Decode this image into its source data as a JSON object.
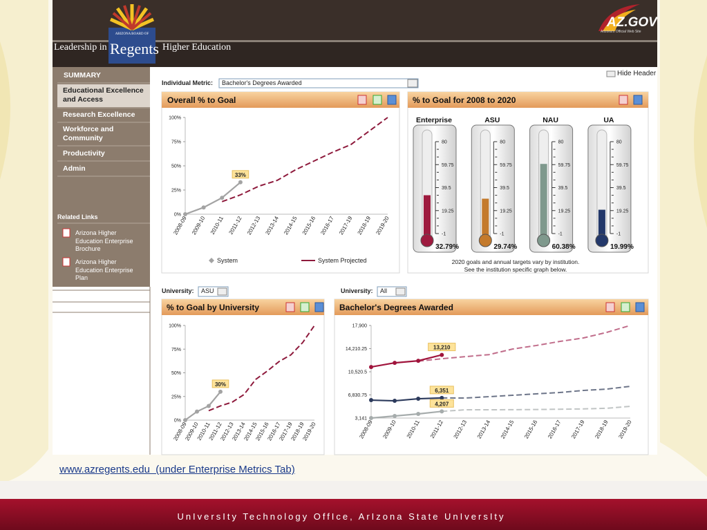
{
  "header": {
    "lead": "Leadership in",
    "logo_small": "ARIZONA BOARD OF",
    "logo": "Regents",
    "tail": "Higher Education",
    "azgov": "AZ.GOV",
    "azgov_tagline": "Arizona's Official Web Site"
  },
  "sidebar": {
    "menu": [
      "SUMMARY",
      "Educational Excellence and Access",
      "Research Excellence",
      "Workforce and Community",
      "Productivity",
      "Admin"
    ],
    "related_title": "Related Links",
    "links": [
      "Arizona Higher Education Enterprise Brochure",
      "Arizona Higher Education Enterprise Plan"
    ]
  },
  "toolbar": {
    "hide_header": "Hide Header",
    "metric_label": "Individual Metric:",
    "metric_value": "Bachelor's Degrees Awarded"
  },
  "charts": [
    {
      "type": "line",
      "title": "Overall % to Goal",
      "categories": [
        "2008-09",
        "2009-10",
        "2010-11",
        "2011-12",
        "2012-13",
        "2013-14",
        "2014-15",
        "2015-16",
        "2016-17",
        "2017-19",
        "2018-19",
        "2019-20"
      ],
      "ylim": [
        0,
        100
      ],
      "yticks": [
        {
          "value": 0,
          "label": "0%"
        },
        {
          "value": 25,
          "label": "25%"
        },
        {
          "value": 50,
          "label": "50%"
        },
        {
          "value": 75,
          "label": "75%"
        },
        {
          "value": 100,
          "label": "100%"
        }
      ],
      "legend": "bottom",
      "series": [
        {
          "name": "System",
          "color": "#a3a3a3",
          "markers": true,
          "values": [
            0,
            7,
            17,
            33,
            null,
            null,
            null,
            null,
            null,
            null,
            null,
            null
          ],
          "value_labels": [
            null,
            null,
            null,
            "33%",
            null,
            null,
            null,
            null,
            null,
            null,
            null,
            null
          ]
        },
        {
          "name": "System Projected",
          "color": "#8e1a3c",
          "dashed": true,
          "values": [
            null,
            null,
            13,
            20,
            29,
            35,
            46,
            55,
            64,
            72,
            86,
            100
          ]
        }
      ]
    },
    {
      "type": "thermometer",
      "title": "% to Goal for 2008 to 2020",
      "categories": [
        "Enterprise",
        "ASU",
        "NAU",
        "UA"
      ],
      "values": [
        32.79,
        29.74,
        60.38,
        19.99
      ],
      "value_labels": [
        "32.79%",
        "29.74%",
        "60.38%",
        "19.99%"
      ],
      "colors": [
        "#9e1b3f",
        "#c47a2c",
        "#7f998d",
        "#23386a"
      ],
      "ylim": [
        -1,
        80
      ],
      "yticks": [
        -1,
        19.25,
        39.5,
        59.75,
        80
      ],
      "note": [
        "2020 goals and annual targets vary by institution.",
        "See the institution specific graph below."
      ]
    },
    {
      "type": "line",
      "title": "% to Goal by University",
      "filter_label": "University:",
      "filter_value": "ASU",
      "categories": [
        "2008-09",
        "2009-10",
        "2010-11",
        "2011-12",
        "2012-13",
        "2013-14",
        "2014-15",
        "2015-16",
        "2016-17",
        "2017-19",
        "2018-19",
        "2019-20"
      ],
      "ylim": [
        0,
        100
      ],
      "yticks": [
        {
          "value": 0,
          "label": "0%"
        },
        {
          "value": 25,
          "label": "25%"
        },
        {
          "value": 50,
          "label": "50%"
        },
        {
          "value": 75,
          "label": "75%"
        },
        {
          "value": 100,
          "label": "100%"
        }
      ],
      "series": [
        {
          "color": "#a3a3a3",
          "markers": true,
          "values": [
            0,
            9,
            15,
            30,
            null,
            null,
            null,
            null,
            null,
            null,
            null,
            null
          ],
          "value_labels": [
            null,
            null,
            null,
            "30%",
            null,
            null,
            null,
            null,
            null,
            null,
            null,
            null
          ]
        },
        {
          "color": "#8e1a3c",
          "dashed": true,
          "values": [
            null,
            null,
            10,
            15,
            19,
            27,
            43,
            52,
            62,
            69,
            82,
            100
          ]
        }
      ]
    },
    {
      "type": "line",
      "title": "Bachelor's Degrees Awarded",
      "filter_label": "University:",
      "filter_value": "All",
      "categories": [
        "2008-09",
        "2009-10",
        "2010-11",
        "2011-12",
        "2012-13",
        "2013-14",
        "2014-15",
        "2015-16",
        "2016-17",
        "2017-19",
        "2018-19",
        "2019-20"
      ],
      "ylim": [
        3141,
        17900
      ],
      "yticks": [
        {
          "value": 3141,
          "label": "3,141"
        },
        {
          "value": 6830.75,
          "label": "6,830.75"
        },
        {
          "value": 10520.5,
          "label": "10,520.5"
        },
        {
          "value": 14210.25,
          "label": "14,210.25"
        },
        {
          "value": 17900,
          "label": "17,900"
        }
      ],
      "series": [
        {
          "color": "#c06c8a",
          "dashed": true,
          "values": [
            null,
            null,
            12200,
            12600,
            12930,
            13250,
            14140,
            14700,
            15350,
            15900,
            16800,
            17900
          ]
        },
        {
          "color": "#6c7488",
          "dashed": true,
          "values": [
            null,
            null,
            null,
            6351,
            6330,
            6550,
            6770,
            7000,
            7210,
            7540,
            7760,
            8200
          ]
        },
        {
          "color": "#c0c4c4",
          "dashed": true,
          "values": [
            null,
            null,
            null,
            4207,
            4460,
            4460,
            4480,
            4500,
            4550,
            4600,
            4700,
            5010
          ]
        },
        {
          "color": "#a0143c",
          "markers": true,
          "values": [
            11281,
            11941,
            12271,
            13210,
            null,
            null,
            null,
            null,
            null,
            null,
            null,
            null
          ],
          "value_labels": [
            null,
            null,
            null,
            "13,210",
            null,
            null,
            null,
            null,
            null,
            null,
            null,
            null
          ]
        },
        {
          "color": "#2c3a5c",
          "markers": true,
          "values": [
            6000,
            5890,
            6220,
            6351,
            null,
            null,
            null,
            null,
            null,
            null,
            null,
            null
          ],
          "value_labels": [
            null,
            null,
            null,
            "6,351",
            null,
            null,
            null,
            null,
            null,
            null,
            null,
            null
          ]
        },
        {
          "color": "#a6acac",
          "markers": true,
          "values": [
            3141,
            3470,
            3800,
            4207,
            null,
            null,
            null,
            null,
            null,
            null,
            null,
            null
          ],
          "value_labels": [
            null,
            null,
            null,
            "4,207",
            null,
            null,
            null,
            null,
            null,
            null,
            null,
            null
          ]
        }
      ]
    }
  ],
  "url": "www.azregents.edu  (under Enterprise Metrics Tab)",
  "footer": "UnIversIty Technology OffIce, ArIzona State UnIversIty"
}
